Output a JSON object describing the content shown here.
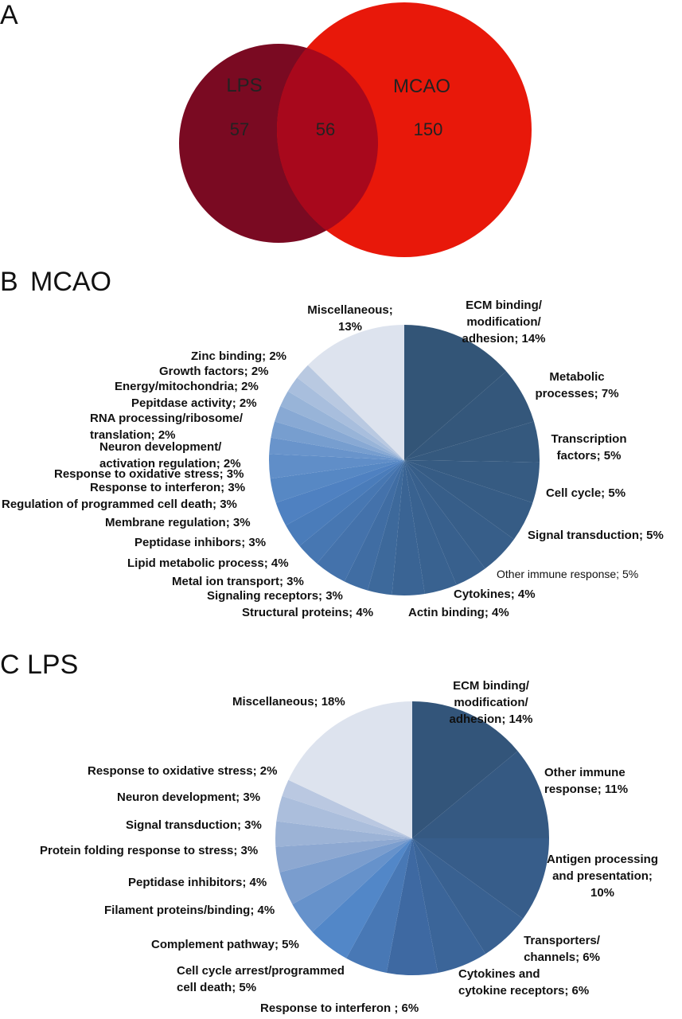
{
  "chart_data": [
    {
      "type": "venn",
      "panel": "A",
      "sets": [
        {
          "name": "LPS",
          "only": 57,
          "color": "#7a0a22"
        },
        {
          "name": "MCAO",
          "only": 150,
          "color": "#e8180a"
        }
      ],
      "overlap": 56
    },
    {
      "type": "pie",
      "panel": "B",
      "title": "MCAO",
      "slices": [
        {
          "label": [
            "ECM binding/",
            "modification/",
            "adhesion; 14%"
          ],
          "value": 14
        },
        {
          "label": [
            "Metabolic",
            "processes; 7%"
          ],
          "value": 7
        },
        {
          "label": [
            "Transcription",
            "factors; 5%"
          ],
          "value": 5
        },
        {
          "label": [
            "Cell cycle; 5%"
          ],
          "value": 5
        },
        {
          "label": [
            "Signal transduction; 5%"
          ],
          "value": 5
        },
        {
          "label": [
            "Other immune response; 5%"
          ],
          "value": 5
        },
        {
          "label": [
            "Cytokines; 4%"
          ],
          "value": 4
        },
        {
          "label": [
            "Actin binding; 4%"
          ],
          "value": 4
        },
        {
          "label": [
            "Structural proteins; 4%"
          ],
          "value": 4
        },
        {
          "label": [
            "Signaling receptors; 3%"
          ],
          "value": 3
        },
        {
          "label": [
            "Metal ion transport; 3%"
          ],
          "value": 3
        },
        {
          "label": [
            "Lipid metabolic process; 4%"
          ],
          "value": 4
        },
        {
          "label": [
            "Peptidase inhibors; 3%"
          ],
          "value": 3
        },
        {
          "label": [
            "Membrane regulation; 3%"
          ],
          "value": 3
        },
        {
          "label": [
            "Regulation of programmed cell death; 3%"
          ],
          "value": 3
        },
        {
          "label": [
            "Response to interferon; 3%"
          ],
          "value": 3
        },
        {
          "label": [
            "Response to oxidative stress; 3%"
          ],
          "value": 3
        },
        {
          "label": [
            "Neuron development/",
            "activation regulation; 2%"
          ],
          "value": 2
        },
        {
          "label": [
            "RNA processing/ribosome/",
            "translation; 2%"
          ],
          "value": 2
        },
        {
          "label": [
            "Pepitdase activity; 2%"
          ],
          "value": 2
        },
        {
          "label": [
            "Energy/mitochondria; 2%"
          ],
          "value": 2
        },
        {
          "label": [
            "Growth factors; 2%"
          ],
          "value": 2
        },
        {
          "label": [
            "Zinc binding; 2%"
          ],
          "value": 2
        },
        {
          "label": [
            "Miscellaneous;",
            "13%"
          ],
          "value": 13
        }
      ]
    },
    {
      "type": "pie",
      "panel": "C",
      "title": "LPS",
      "slices": [
        {
          "label": [
            "ECM binding/",
            "modification/",
            "adhesion; 14%"
          ],
          "value": 14
        },
        {
          "label": [
            "Other immune",
            "response; 11%"
          ],
          "value": 11
        },
        {
          "label": [
            "Antigen processing",
            "and presentation;",
            "10%"
          ],
          "value": 10
        },
        {
          "label": [
            "Transporters/",
            "channels; 6%"
          ],
          "value": 6
        },
        {
          "label": [
            "Cytokines and",
            "cytokine receptors; 6%"
          ],
          "value": 6
        },
        {
          "label": [
            "Response to interferon ; 6%"
          ],
          "value": 6
        },
        {
          "label": [
            "Cell cycle arrest/programmed",
            "cell death; 5%"
          ],
          "value": 5
        },
        {
          "label": [
            "Complement pathway; 5%"
          ],
          "value": 5
        },
        {
          "label": [
            "Filament proteins/binding; 4%"
          ],
          "value": 4
        },
        {
          "label": [
            "Peptidase inhibitors; 4%"
          ],
          "value": 4
        },
        {
          "label": [
            "Protein folding response to stress; 3%"
          ],
          "value": 3
        },
        {
          "label": [
            "Signal transduction; 3%"
          ],
          "value": 3
        },
        {
          "label": [
            "Neuron development; 3%"
          ],
          "value": 3
        },
        {
          "label": [
            "Response to oxidative stress; 2%"
          ],
          "value": 2
        },
        {
          "label": [
            "Miscellaneous; 18%"
          ],
          "value": 18
        }
      ]
    }
  ],
  "colors": {
    "lps": "#7a0a22",
    "mcao": "#e8180a",
    "overlap": "#a8081c",
    "pie_dark": "#355a80",
    "pie_mid": "#3f6aa6",
    "pie_bright": "#5286c6",
    "pie_light": "#dde3ee"
  }
}
